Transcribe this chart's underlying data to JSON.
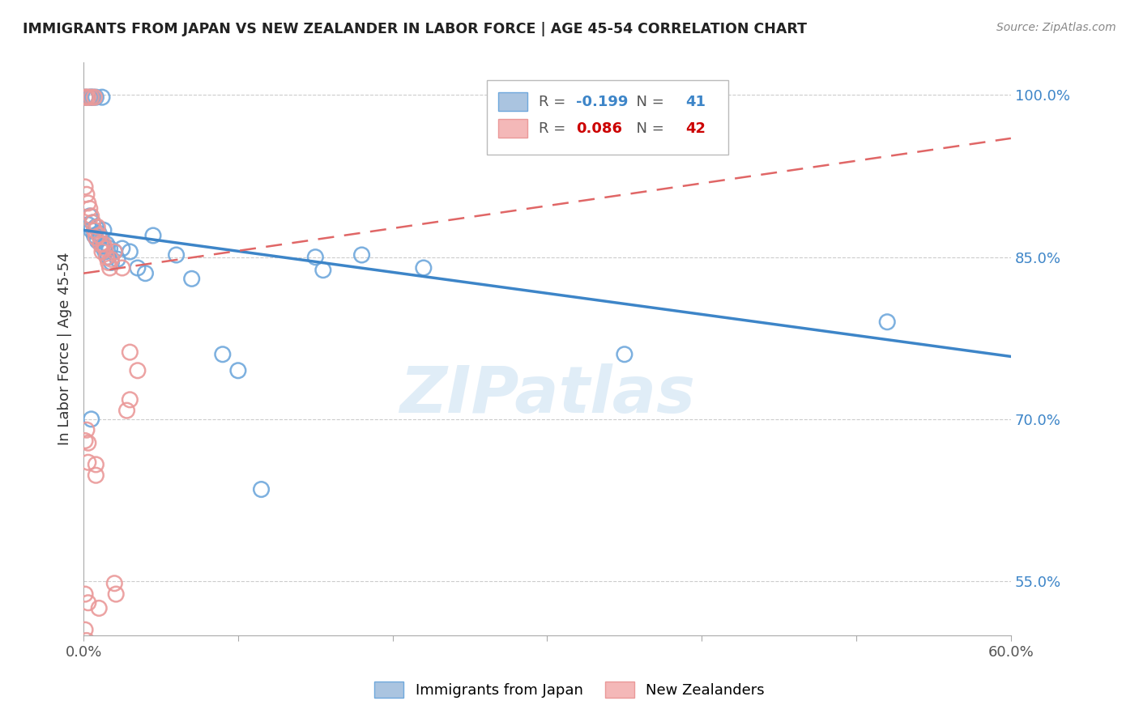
{
  "title": "IMMIGRANTS FROM JAPAN VS NEW ZEALANDER IN LABOR FORCE | AGE 45-54 CORRELATION CHART",
  "source": "Source: ZipAtlas.com",
  "ylabel": "In Labor Force | Age 45-54",
  "xlim": [
    0.0,
    0.6
  ],
  "ylim": [
    0.5,
    1.03
  ],
  "yticks": [
    0.55,
    0.7,
    0.85,
    1.0
  ],
  "ytick_labels": [
    "55.0%",
    "70.0%",
    "85.0%",
    "100.0%"
  ],
  "xtick_positions": [
    0.0,
    0.1,
    0.2,
    0.3,
    0.4,
    0.5,
    0.6
  ],
  "xtick_labels": [
    "0.0%",
    "",
    "",
    "",
    "",
    "",
    "60.0%"
  ],
  "blue_label": "Immigrants from Japan",
  "pink_label": "New Zealanders",
  "blue_R": -0.199,
  "blue_N": 41,
  "pink_R": 0.086,
  "pink_N": 42,
  "blue_points": [
    [
      0.001,
      0.998
    ],
    [
      0.004,
      0.998
    ],
    [
      0.005,
      0.998
    ],
    [
      0.006,
      0.998
    ],
    [
      0.008,
      0.998
    ],
    [
      0.012,
      0.998
    ],
    [
      0.003,
      0.88
    ],
    [
      0.004,
      0.888
    ],
    [
      0.005,
      0.875
    ],
    [
      0.006,
      0.882
    ],
    [
      0.007,
      0.87
    ],
    [
      0.008,
      0.878
    ],
    [
      0.009,
      0.865
    ],
    [
      0.01,
      0.872
    ],
    [
      0.011,
      0.868
    ],
    [
      0.012,
      0.86
    ],
    [
      0.013,
      0.875
    ],
    [
      0.014,
      0.855
    ],
    [
      0.015,
      0.862
    ],
    [
      0.016,
      0.85
    ],
    [
      0.017,
      0.858
    ],
    [
      0.018,
      0.845
    ],
    [
      0.02,
      0.855
    ],
    [
      0.022,
      0.848
    ],
    [
      0.025,
      0.858
    ],
    [
      0.03,
      0.855
    ],
    [
      0.035,
      0.84
    ],
    [
      0.04,
      0.835
    ],
    [
      0.045,
      0.87
    ],
    [
      0.06,
      0.852
    ],
    [
      0.07,
      0.83
    ],
    [
      0.09,
      0.76
    ],
    [
      0.1,
      0.745
    ],
    [
      0.115,
      0.635
    ],
    [
      0.15,
      0.85
    ],
    [
      0.155,
      0.838
    ],
    [
      0.18,
      0.852
    ],
    [
      0.22,
      0.84
    ],
    [
      0.35,
      0.76
    ],
    [
      0.52,
      0.79
    ],
    [
      0.005,
      0.7
    ]
  ],
  "pink_points": [
    [
      0.001,
      0.998
    ],
    [
      0.002,
      0.998
    ],
    [
      0.003,
      0.998
    ],
    [
      0.005,
      0.998
    ],
    [
      0.007,
      0.998
    ],
    [
      0.001,
      0.915
    ],
    [
      0.002,
      0.908
    ],
    [
      0.003,
      0.9
    ],
    [
      0.004,
      0.895
    ],
    [
      0.005,
      0.888
    ],
    [
      0.006,
      0.882
    ],
    [
      0.007,
      0.875
    ],
    [
      0.008,
      0.868
    ],
    [
      0.009,
      0.878
    ],
    [
      0.01,
      0.87
    ],
    [
      0.011,
      0.862
    ],
    [
      0.012,
      0.855
    ],
    [
      0.013,
      0.862
    ],
    [
      0.014,
      0.858
    ],
    [
      0.015,
      0.85
    ],
    [
      0.016,
      0.845
    ],
    [
      0.017,
      0.84
    ],
    [
      0.018,
      0.848
    ],
    [
      0.02,
      0.855
    ],
    [
      0.025,
      0.84
    ],
    [
      0.03,
      0.762
    ],
    [
      0.035,
      0.745
    ],
    [
      0.001,
      0.68
    ],
    [
      0.002,
      0.69
    ],
    [
      0.001,
      0.538
    ],
    [
      0.003,
      0.53
    ],
    [
      0.02,
      0.548
    ],
    [
      0.021,
      0.538
    ],
    [
      0.001,
      0.505
    ],
    [
      0.002,
      0.495
    ],
    [
      0.03,
      0.718
    ],
    [
      0.028,
      0.708
    ],
    [
      0.003,
      0.678
    ],
    [
      0.003,
      0.66
    ],
    [
      0.008,
      0.658
    ],
    [
      0.008,
      0.648
    ],
    [
      0.01,
      0.525
    ]
  ],
  "blue_color": "#6fa8dc",
  "pink_color": "#ea9999",
  "blue_line_color": "#3d85c8",
  "pink_line_color": "#e06666",
  "watermark_text": "ZIPatlas",
  "background_color": "#ffffff",
  "legend_R_color_blue": "#3d85c8",
  "legend_R_color_pink": "#cc0000",
  "legend_N_color_blue": "#3d85c8",
  "legend_N_color_pink": "#cc0000"
}
